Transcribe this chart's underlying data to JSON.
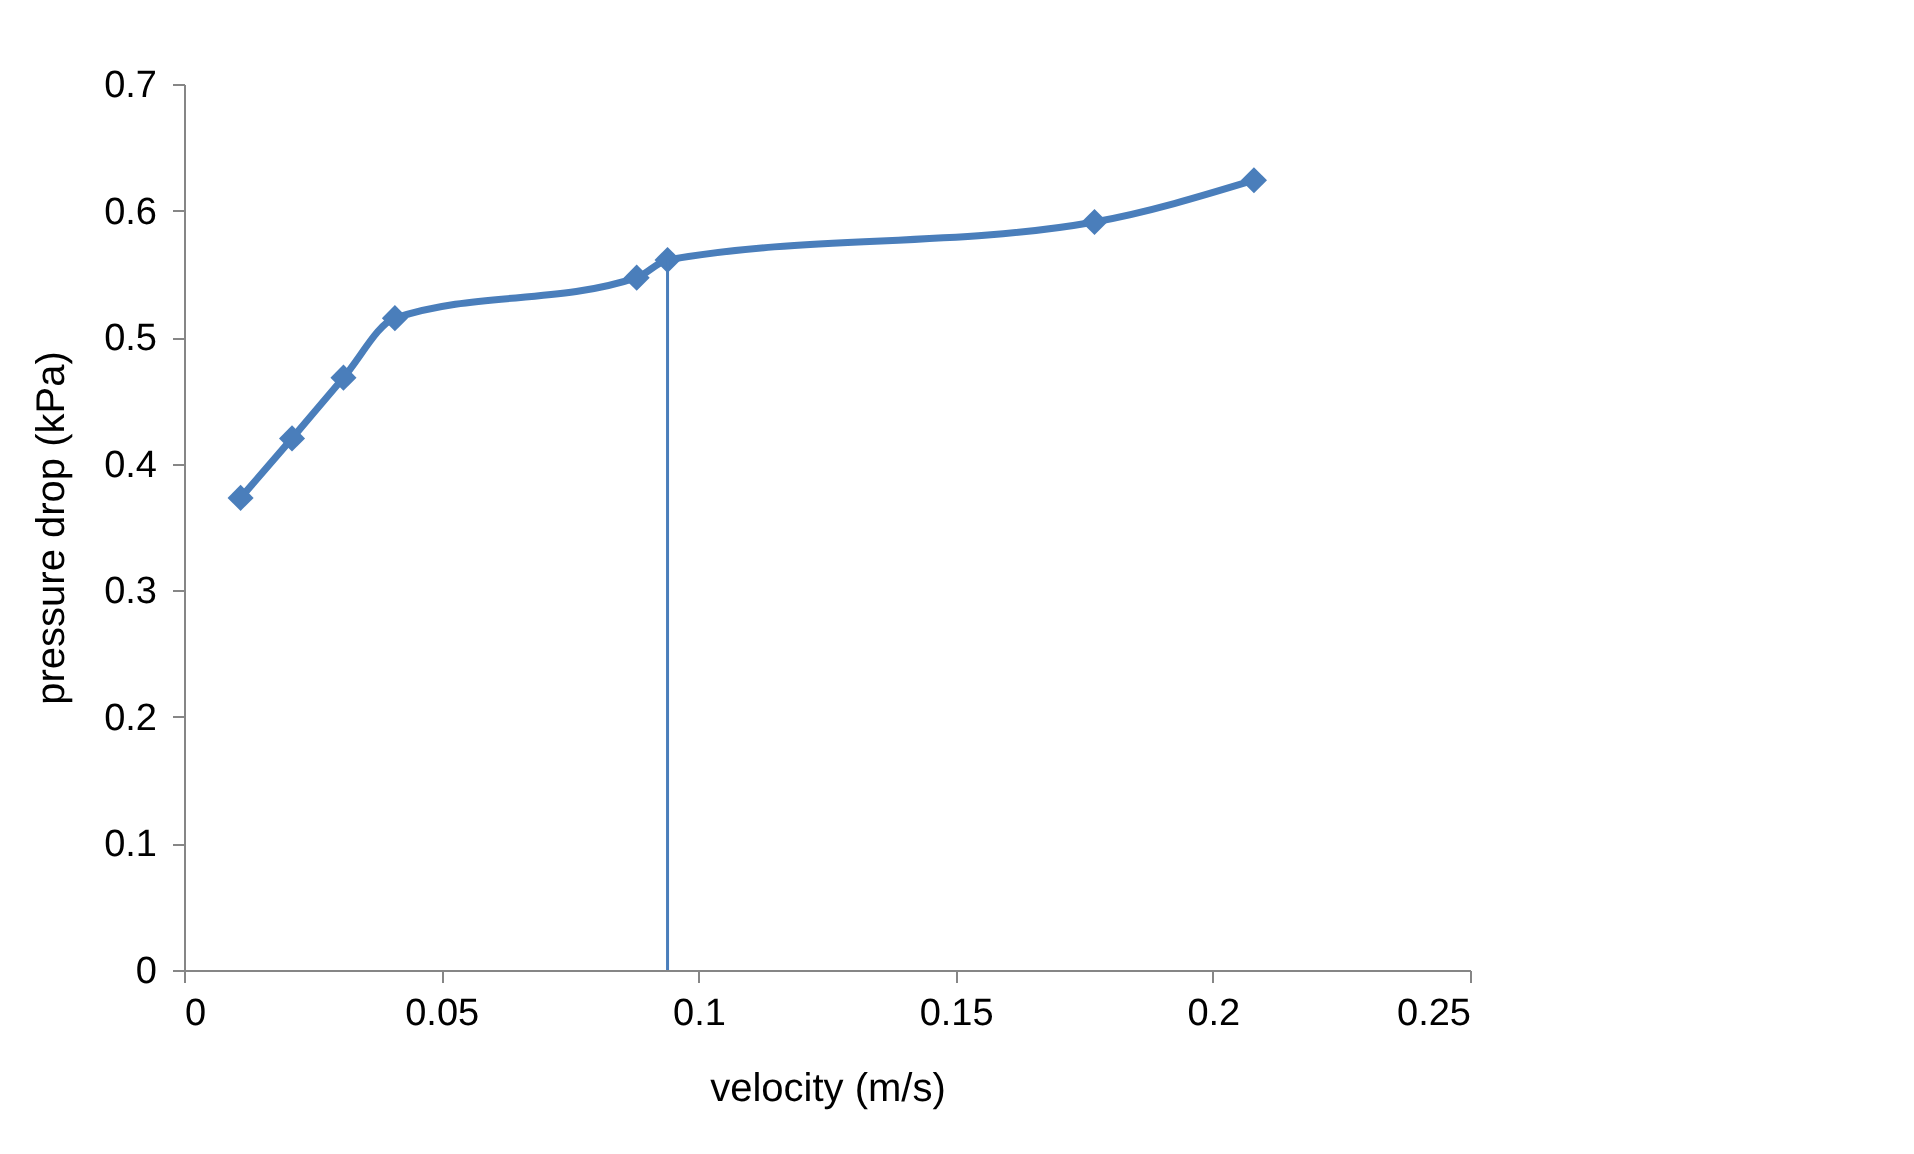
{
  "chart_data": {
    "type": "line",
    "xlabel": "velocity (m/s)",
    "ylabel": "pressure drop (kPa)",
    "x": [
      0.011,
      0.021,
      0.031,
      0.041,
      0.088,
      0.094,
      0.177,
      0.208
    ],
    "series": [
      {
        "color": "#4a7ebb",
        "values": [
          0.373,
          0.42,
          0.468,
          0.515,
          0.547,
          0.561,
          0.591,
          0.624
        ]
      }
    ],
    "xlim": [
      0,
      0.25
    ],
    "xticks": [
      0,
      0.05,
      0.1,
      0.15,
      0.2,
      0.25
    ],
    "ylim": [
      0,
      0.7
    ],
    "yticks": [
      0,
      0.1,
      0.2,
      0.3,
      0.4,
      0.5,
      0.6,
      0.7
    ],
    "ref_lines": [
      {
        "axis": "x",
        "value": 0.094,
        "color": "#4a7ebb"
      }
    ],
    "grid": false,
    "marker": "diamond",
    "line_style": "solid"
  }
}
